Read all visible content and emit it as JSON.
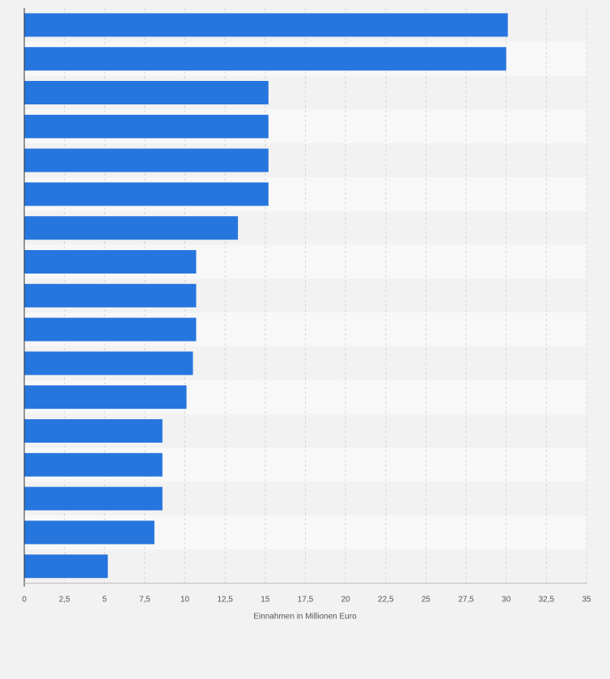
{
  "chart_data": {
    "type": "bar",
    "orientation": "horizontal",
    "title": "",
    "xlabel": "Einnahmen in Millionen Euro",
    "ylabel": "",
    "xlim": [
      0,
      35
    ],
    "x_ticks": [
      0,
      2.5,
      5,
      7.5,
      10,
      12.5,
      15,
      17.5,
      20,
      22.5,
      25,
      27.5,
      30,
      32.5,
      35
    ],
    "x_tick_labels": [
      "0",
      "2,5",
      "5",
      "7,5",
      "10",
      "12,5",
      "15",
      "17,5",
      "20",
      "22,5",
      "25",
      "27,5",
      "30",
      "32,5",
      "35"
    ],
    "grid": "vertical dashed",
    "categories": [
      "",
      "",
      "",
      "",
      "",
      "",
      "",
      "",
      "",
      "",
      "",
      "",
      "",
      "",
      "",
      "",
      ""
    ],
    "values": [
      30.1,
      30.0,
      15.2,
      15.2,
      15.2,
      15.2,
      13.3,
      10.7,
      10.7,
      10.7,
      10.5,
      10.1,
      8.6,
      8.6,
      8.6,
      8.1,
      5.2
    ],
    "colors": {
      "bar": "#2776de",
      "background": "#f2f2f2",
      "band_light": "#f8f8f8",
      "band_dark": "#f2f2f2",
      "grid": "#d7d7d7",
      "axis": "#333333"
    }
  }
}
